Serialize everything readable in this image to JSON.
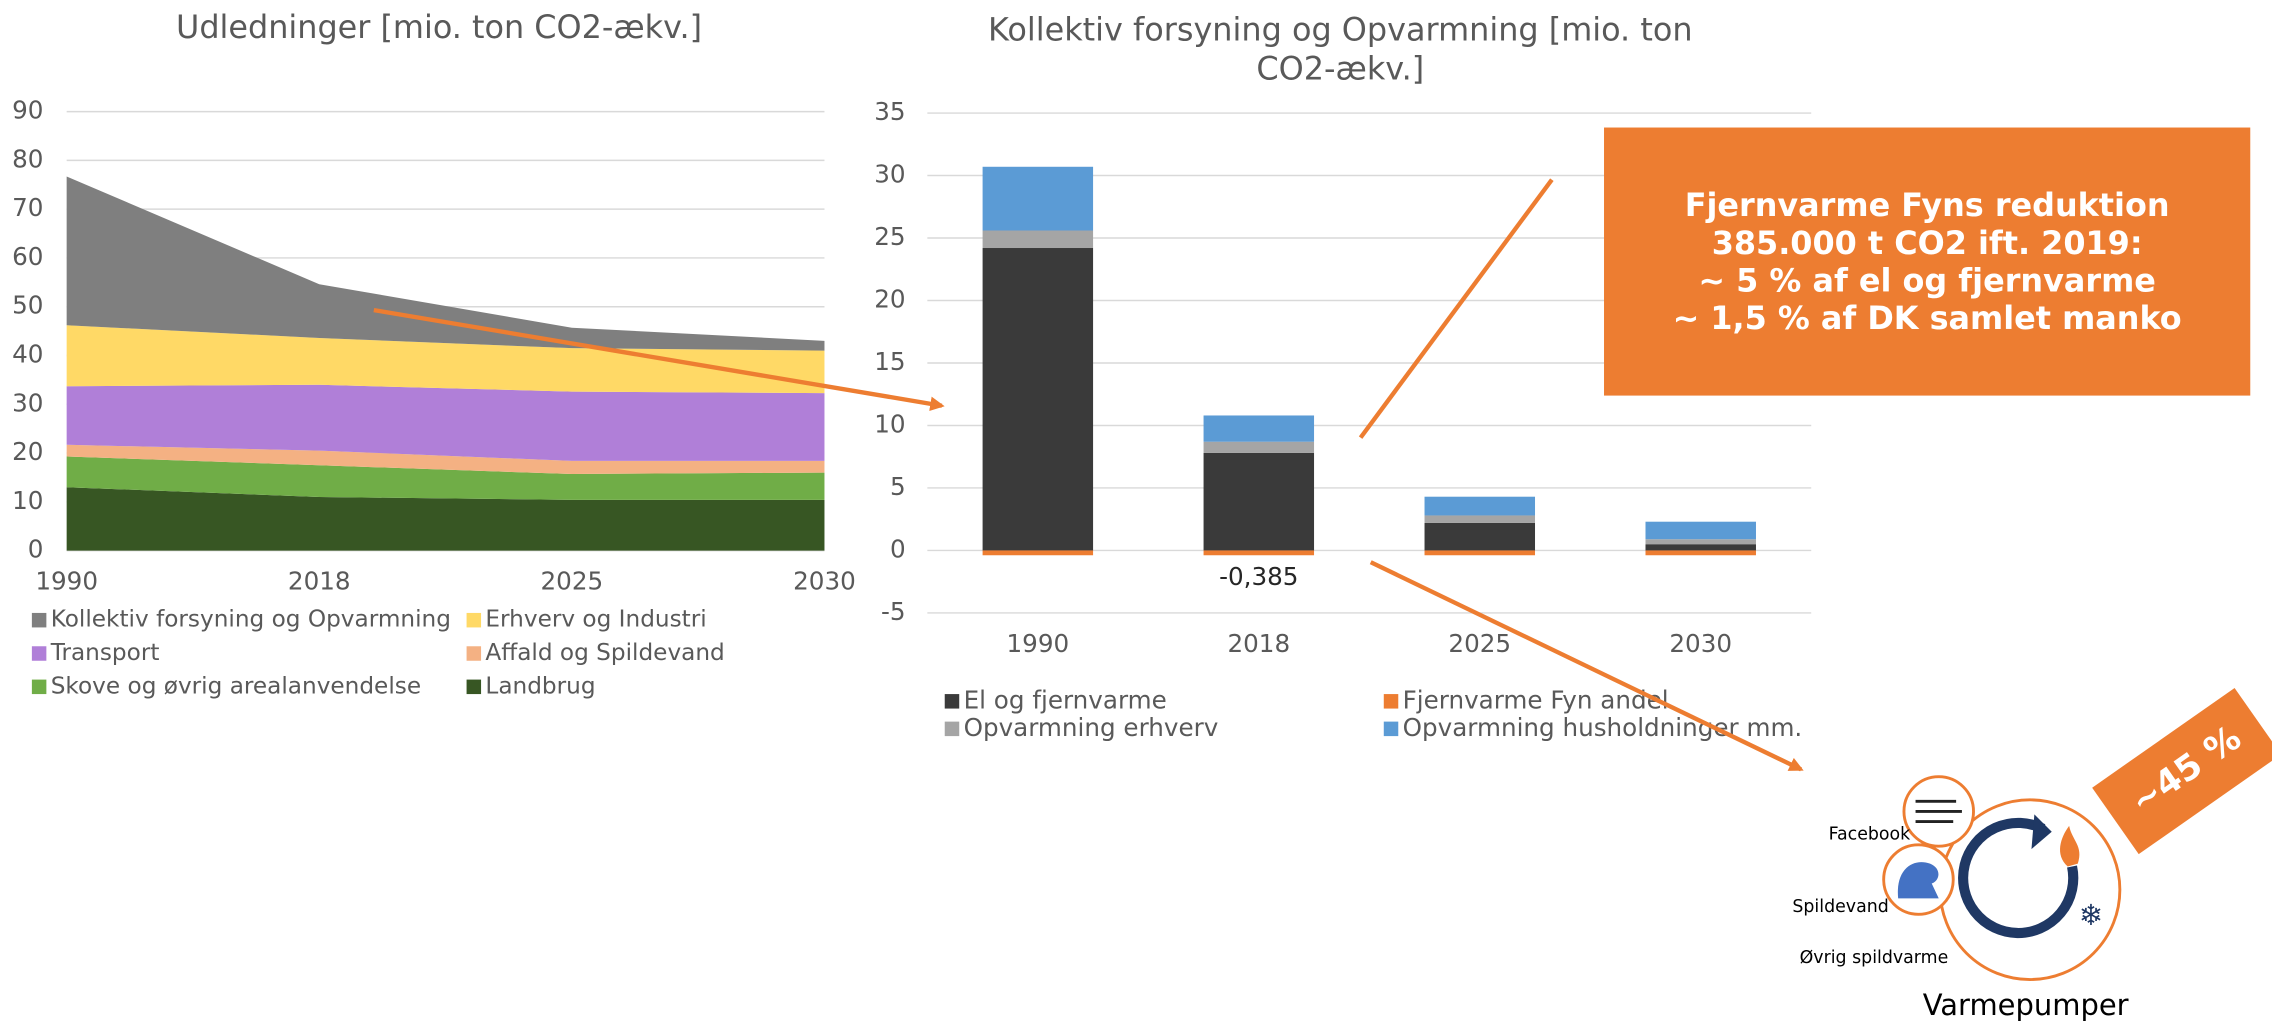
{
  "chart_data": [
    {
      "type": "stacked-area",
      "title": "Udledninger [mio. ton CO2-ækv.]",
      "categories": [
        "1990",
        "2018",
        "2025",
        "2030"
      ],
      "ylim": [
        0,
        90
      ],
      "yticks": [
        0,
        10,
        20,
        30,
        40,
        50,
        60,
        70,
        80,
        90
      ],
      "grid": true,
      "series": [
        {
          "name": "Kollektiv forsyning og Opvarmning",
          "color": "#7f7f7f",
          "values": [
            30.5,
            11,
            4.2,
            2.0
          ]
        },
        {
          "name": "Erhverv og Industri",
          "color": "#ffd966",
          "values": [
            12.5,
            9.6,
            8.9,
            8.7
          ]
        },
        {
          "name": "Transport",
          "color": "#b07fd8",
          "values": [
            12,
            13.5,
            14.2,
            13.9
          ]
        },
        {
          "name": "Affald og Spildevand",
          "color": "#f4b183",
          "values": [
            2.4,
            3,
            2.7,
            2.4
          ]
        },
        {
          "name": "Skove og øvrig arealanvendelse",
          "color": "#70ad47",
          "values": [
            6.3,
            6.5,
            5.3,
            5.6
          ]
        },
        {
          "name": "Landbrug",
          "color": "#375623",
          "values": [
            13,
            11,
            10.4,
            10.4
          ]
        }
      ]
    },
    {
      "type": "stacked-bar",
      "title": "Kollektiv forsyning og Opvarmning [mio. ton CO2-ækv.]",
      "categories": [
        "1990",
        "2018",
        "2025",
        "2030"
      ],
      "ylim": [
        -5,
        35
      ],
      "yticks": [
        -5,
        0,
        5,
        10,
        15,
        20,
        25,
        30,
        35
      ],
      "grid": true,
      "series": [
        {
          "name": "El og fjernvarme",
          "color": "#3a3a3a",
          "values": [
            24.2,
            7.8,
            2.2,
            0.5
          ]
        },
        {
          "name": "Fjernvarme Fyn andel",
          "color": "#ed7d31",
          "values": [
            -0.385,
            -0.385,
            -0.385,
            -0.385
          ],
          "value_labels": [
            null,
            "-0,385",
            null,
            null
          ]
        },
        {
          "name": "Opvarmning erhverv",
          "color": "#a5a5a5",
          "values": [
            1.4,
            0.9,
            0.6,
            0.4
          ]
        },
        {
          "name": "Opvarmning husholdninger mm.",
          "color": "#5b9bd5",
          "values": [
            5.1,
            2.1,
            1.5,
            1.4
          ]
        }
      ]
    }
  ],
  "callout": {
    "lines": [
      "Fjernvarme Fyns reduktion",
      "385.000 t CO2 ift. 2019:",
      "~ 5 % af el og fjernvarme",
      "~ 1,5 % af DK samlet manko"
    ]
  },
  "diagram": {
    "tag": "~45 %",
    "labels": [
      "Facebook",
      "Spildevand",
      "Øvrig spildvarme"
    ],
    "caption": "Varmepumper"
  }
}
